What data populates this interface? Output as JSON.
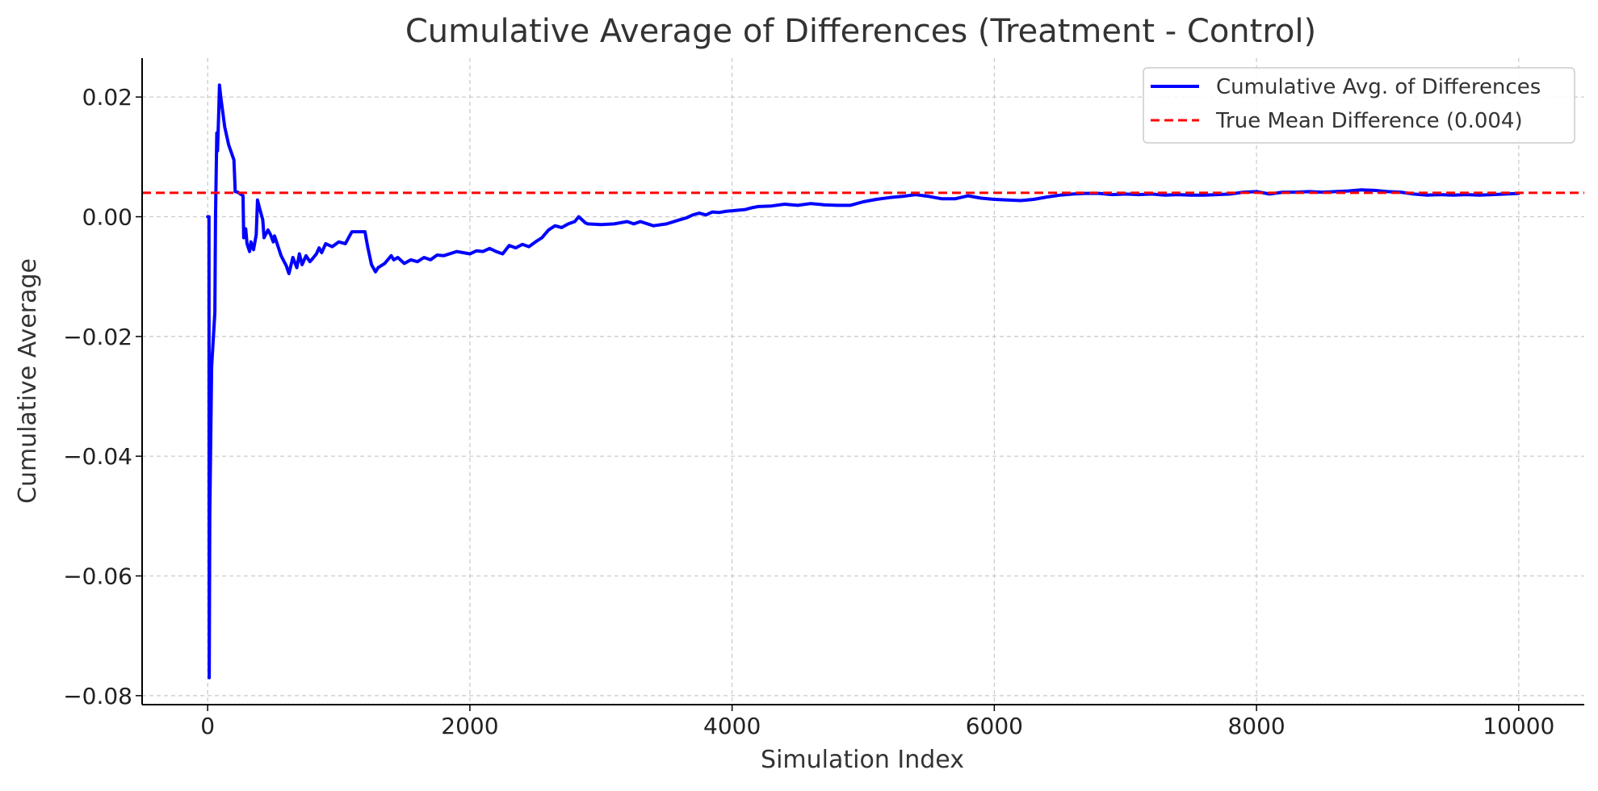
{
  "chart_data": {
    "type": "line",
    "title": "Cumulative Average of Differences (Treatment - Control)",
    "xlabel": "Simulation Index",
    "ylabel": "Cumulative Average",
    "xlim": [
      -500,
      10500
    ],
    "ylim": [
      -0.0815,
      0.0265
    ],
    "x_ticks": [
      0,
      2000,
      4000,
      6000,
      8000,
      10000
    ],
    "x_tick_labels": [
      "0",
      "2000",
      "4000",
      "6000",
      "8000",
      "10000"
    ],
    "y_ticks": [
      0.02,
      0.0,
      -0.02,
      -0.04,
      -0.06,
      -0.08
    ],
    "y_tick_labels": [
      "0.02",
      "0.00",
      "−0.02",
      "−0.04",
      "−0.06",
      "−0.08"
    ],
    "grid": true,
    "legend_position": "top-right",
    "series": [
      {
        "name": "Cumulative Avg. of Differences",
        "style": "solid",
        "color": "#0000ff",
        "x": [
          0,
          10,
          12,
          16,
          30,
          55,
          60,
          70,
          75,
          85,
          90,
          100,
          130,
          160,
          200,
          210,
          230,
          270,
          275,
          290,
          300,
          320,
          330,
          350,
          370,
          380,
          395,
          420,
          430,
          460,
          480,
          500,
          510,
          560,
          600,
          620,
          650,
          680,
          700,
          720,
          750,
          780,
          800,
          830,
          850,
          870,
          900,
          950,
          1000,
          1050,
          1100,
          1120,
          1200,
          1220,
          1250,
          1280,
          1300,
          1350,
          1400,
          1420,
          1450,
          1500,
          1550,
          1600,
          1650,
          1700,
          1750,
          1800,
          1900,
          2000,
          2050,
          2100,
          2150,
          2200,
          2250,
          2300,
          2350,
          2400,
          2450,
          2500,
          2550,
          2600,
          2650,
          2700,
          2750,
          2800,
          2830,
          2880,
          2900,
          3000,
          3100,
          3200,
          3250,
          3300,
          3400,
          3500,
          3600,
          3650,
          3700,
          3750,
          3800,
          3850,
          3900,
          3950,
          4000,
          4100,
          4150,
          4200,
          4300,
          4400,
          4500,
          4600,
          4700,
          4800,
          4900,
          5000,
          5100,
          5200,
          5300,
          5400,
          5500,
          5600,
          5700,
          5800,
          5900,
          6000,
          6100,
          6200,
          6300,
          6400,
          6500,
          6600,
          6700,
          6800,
          6900,
          7000,
          7100,
          7200,
          7300,
          7400,
          7500,
          7600,
          7700,
          7800,
          7900,
          8000,
          8100,
          8200,
          8300,
          8400,
          8500,
          8600,
          8700,
          8800,
          8900,
          9000,
          9100,
          9200,
          9300,
          9400,
          9500,
          9600,
          9700,
          9800,
          9900,
          10000
        ],
        "y": [
          0.0,
          0.0,
          -0.077,
          -0.05,
          -0.025,
          -0.016,
          0.0,
          0.014,
          0.011,
          0.018,
          0.022,
          0.02,
          0.015,
          0.012,
          0.0095,
          0.0042,
          0.0041,
          0.0035,
          -0.0035,
          -0.002,
          -0.0045,
          -0.0058,
          -0.0042,
          -0.0055,
          -0.003,
          0.0028,
          0.0015,
          -0.0005,
          -0.0035,
          -0.0022,
          -0.003,
          -0.0042,
          -0.0032,
          -0.0065,
          -0.0082,
          -0.0095,
          -0.0068,
          -0.0085,
          -0.0062,
          -0.008,
          -0.0065,
          -0.0075,
          -0.007,
          -0.0062,
          -0.0052,
          -0.006,
          -0.0045,
          -0.005,
          -0.0042,
          -0.0045,
          -0.0025,
          -0.0025,
          -0.0025,
          -0.005,
          -0.008,
          -0.0092,
          -0.0085,
          -0.0078,
          -0.0065,
          -0.0072,
          -0.0068,
          -0.0078,
          -0.0072,
          -0.0075,
          -0.0068,
          -0.0072,
          -0.0064,
          -0.0065,
          -0.0058,
          -0.0062,
          -0.0057,
          -0.0058,
          -0.0053,
          -0.0058,
          -0.0062,
          -0.0048,
          -0.0052,
          -0.0046,
          -0.005,
          -0.0042,
          -0.0035,
          -0.0022,
          -0.0015,
          -0.0018,
          -0.0012,
          -0.0008,
          0.0,
          -0.001,
          -0.0012,
          -0.0013,
          -0.0012,
          -0.0008,
          -0.0012,
          -0.0008,
          -0.0015,
          -0.0012,
          -0.0005,
          -0.0002,
          0.0003,
          0.0006,
          0.0003,
          0.0008,
          0.0007,
          0.0009,
          0.001,
          0.0012,
          0.0015,
          0.0017,
          0.0018,
          0.0021,
          0.0019,
          0.0022,
          0.002,
          0.0019,
          0.0019,
          0.0025,
          0.0029,
          0.0032,
          0.0034,
          0.0037,
          0.0034,
          0.003,
          0.003,
          0.0035,
          0.0031,
          0.0029,
          0.0028,
          0.0027,
          0.0029,
          0.0033,
          0.0036,
          0.0038,
          0.0039,
          0.0039,
          0.0037,
          0.0038,
          0.0037,
          0.0038,
          0.0036,
          0.0037,
          0.0036,
          0.0036,
          0.0037,
          0.0038,
          0.0041,
          0.0042,
          0.0038,
          0.0041,
          0.0041,
          0.0042,
          0.0041,
          0.0042,
          0.0043,
          0.0045,
          0.0044,
          0.0042,
          0.0041,
          0.0038,
          0.0036,
          0.0037,
          0.0036,
          0.0037,
          0.0036,
          0.0037,
          0.0038,
          0.0039
        ]
      },
      {
        "name": "True Mean Difference (0.004)",
        "style": "dashed",
        "color": "#ff0000",
        "x": [
          -500,
          10500
        ],
        "y": [
          0.004,
          0.004
        ]
      }
    ]
  }
}
